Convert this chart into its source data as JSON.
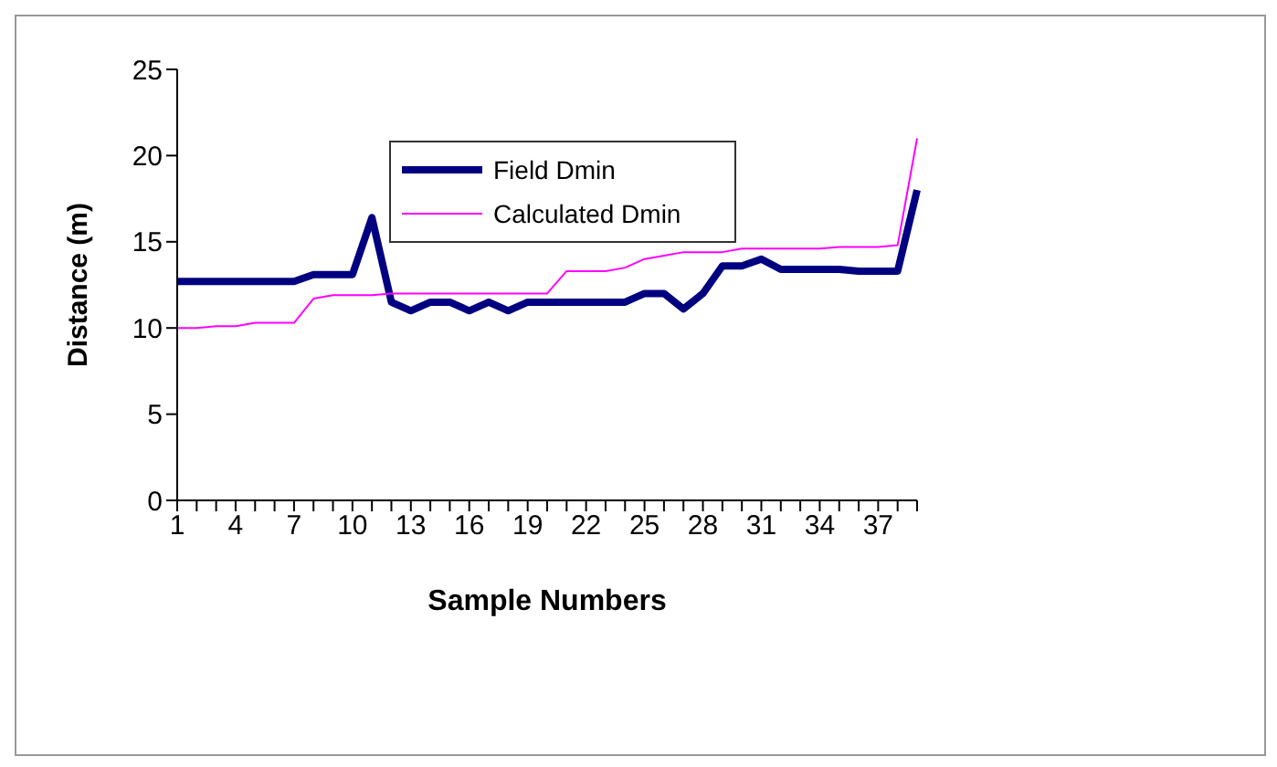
{
  "chart_data": {
    "type": "line",
    "xlabel": "Sample Numbers",
    "ylabel": "Distance (m)",
    "categories": [
      "1",
      null,
      null,
      "4",
      null,
      null,
      "7",
      null,
      null,
      "10",
      null,
      null,
      "13",
      null,
      null,
      "16",
      null,
      null,
      "19",
      null,
      null,
      "22",
      null,
      null,
      "25",
      null,
      null,
      "28",
      null,
      null,
      "31",
      null,
      null,
      "34",
      null,
      null,
      "37",
      null,
      null
    ],
    "series": [
      {
        "name": "Field Dmin",
        "color": "#000080",
        "values": [
          12.7,
          12.7,
          12.7,
          12.7,
          12.7,
          12.7,
          12.7,
          13.1,
          13.1,
          13.1,
          16.4,
          11.5,
          11.0,
          11.5,
          11.5,
          11.0,
          11.5,
          11.0,
          11.5,
          11.5,
          11.5,
          11.5,
          11.5,
          11.5,
          12.0,
          12.0,
          11.1,
          12.0,
          13.6,
          13.6,
          14.0,
          13.4,
          13.4,
          13.4,
          13.4,
          13.3,
          13.3,
          13.3,
          18.0
        ]
      },
      {
        "name": "Calculated Dmin",
        "color": "#ff00ff",
        "values": [
          10.0,
          10.0,
          10.1,
          10.1,
          10.3,
          10.3,
          10.3,
          11.7,
          11.9,
          11.9,
          11.9,
          12.0,
          12.0,
          12.0,
          12.0,
          12.0,
          12.0,
          12.0,
          12.0,
          12.0,
          13.3,
          13.3,
          13.3,
          13.5,
          14.0,
          14.2,
          14.4,
          14.4,
          14.4,
          14.6,
          14.6,
          14.6,
          14.6,
          14.6,
          14.7,
          14.7,
          14.7,
          14.8,
          21.0
        ]
      }
    ],
    "ylim": [
      0,
      25
    ],
    "yticks": [
      0,
      5,
      10,
      15,
      20,
      25
    ],
    "grid": false,
    "legend": "top",
    "marker": "none",
    "line_style": "solid"
  }
}
